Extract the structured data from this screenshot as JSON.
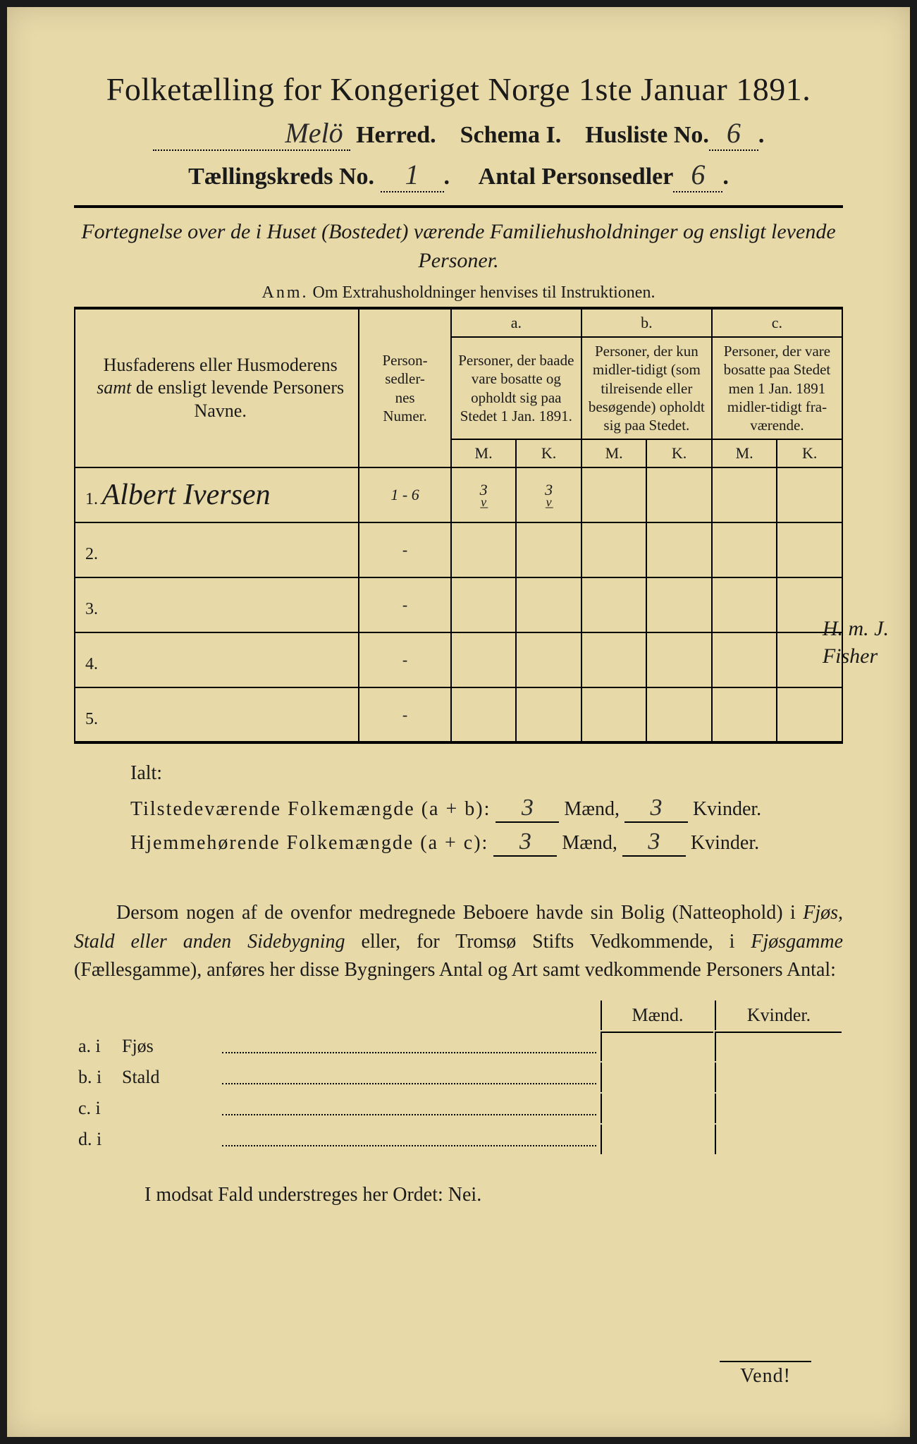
{
  "title": "Folketælling for Kongeriget Norge 1ste Januar 1891.",
  "header": {
    "herred_value": "Melö",
    "herred_label": "Herred.",
    "schema_label": "Schema I.",
    "husliste_label": "Husliste No.",
    "husliste_value": "6",
    "kreds_label": "Tællingskreds No.",
    "kreds_value": "1",
    "sedler_label": "Antal Personsedler",
    "sedler_value": "6"
  },
  "subtitle": "Fortegnelse over de i Huset (Bostedet) værende Familiehusholdninger og ensligt levende Personer.",
  "anm": "Anm. Om Extrahusholdninger henvises til Instruktionen.",
  "table": {
    "col_a": "a.",
    "col_b": "b.",
    "col_c": "c.",
    "head_name": "Husfaderens eller Husmoderens samt de ensligt levende Personers Navne.",
    "head_num": "Person-sedler-nes Numer.",
    "head_a": "Personer, der baade vare bosatte og opholdt sig paa Stedet 1 Jan. 1891.",
    "head_b": "Personer, der kun midler-tidigt (som tilreisende eller besøgende) opholdt sig paa Stedet.",
    "head_c": "Personer, der vare bosatte paa Stedet men 1 Jan. 1891 midler-tidigt fra-værende.",
    "M": "M.",
    "K": "K.",
    "rows": [
      {
        "n": "1.",
        "name": "Albert Iversen",
        "num": "1 - 6",
        "aM": "3",
        "aK": "3",
        "bM": "",
        "bK": "",
        "cM": "",
        "cK": ""
      },
      {
        "n": "2.",
        "name": "",
        "num": "-",
        "aM": "",
        "aK": "",
        "bM": "",
        "bK": "",
        "cM": "",
        "cK": ""
      },
      {
        "n": "3.",
        "name": "",
        "num": "-",
        "aM": "",
        "aK": "",
        "bM": "",
        "bK": "",
        "cM": "",
        "cK": ""
      },
      {
        "n": "4.",
        "name": "",
        "num": "-",
        "aM": "",
        "aK": "",
        "bM": "",
        "bK": "",
        "cM": "",
        "cK": ""
      },
      {
        "n": "5.",
        "name": "",
        "num": "-",
        "aM": "",
        "aK": "",
        "bM": "",
        "bK": "",
        "cM": "",
        "cK": ""
      }
    ],
    "margin_note_1": "H. m. J.",
    "margin_note_2": "Fisher"
  },
  "ialt": {
    "label": "Ialt:",
    "line1_label": "Tilstedeværende Folkemængde (a + b):",
    "line2_label": "Hjemmehørende Folkemængde (a + c):",
    "maend": "Mænd,",
    "kvinder": "Kvinder.",
    "line1_m": "3",
    "line1_k": "3",
    "line2_m": "3",
    "line2_k": "3"
  },
  "paragraph": {
    "text1": "Dersom nogen af de ovenfor medregnede Beboere havde sin Bolig (Natteophold) i ",
    "italic1": "Fjøs, Stald eller anden Sidebygning",
    "text2": " eller, for Tromsø Stifts Vedkommende, i ",
    "italic2": "Fjøsgamme",
    "text3": " (Fællesgamme), anføres her disse Bygningers Antal og Art samt vedkommende Personers Antal:"
  },
  "bottom": {
    "maend": "Mænd.",
    "kvinder": "Kvinder.",
    "rows": [
      {
        "label": "a.  i",
        "word": "Fjøs"
      },
      {
        "label": "b.  i",
        "word": "Stald"
      },
      {
        "label": "c.  i",
        "word": ""
      },
      {
        "label": "d.  i",
        "word": ""
      }
    ]
  },
  "nei_line": "I modsat Fald understreges her Ordet: Nei.",
  "vend": "Vend!"
}
